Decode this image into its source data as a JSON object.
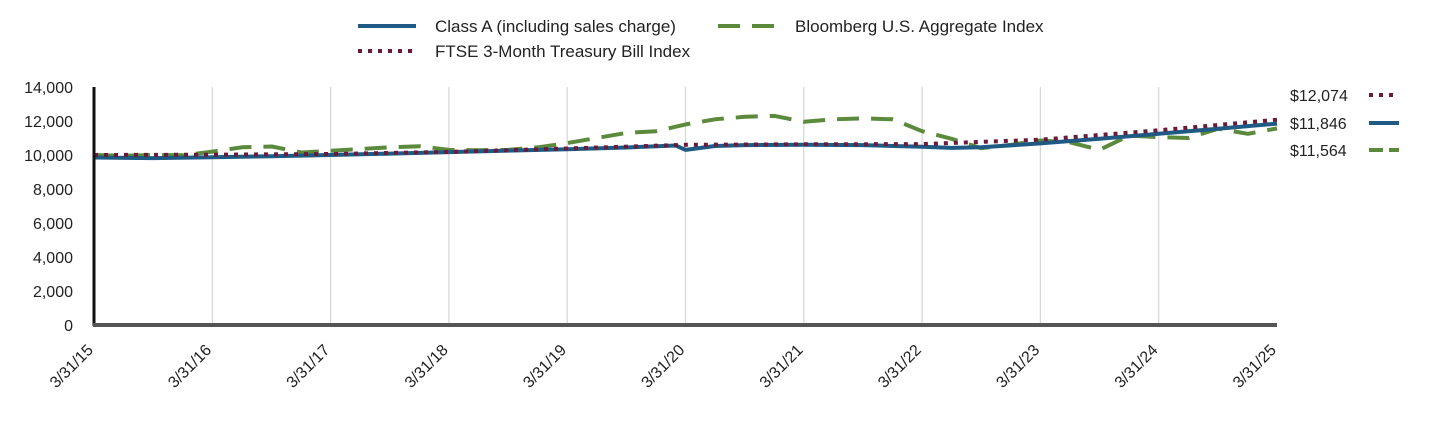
{
  "chart_data": {
    "type": "line",
    "title": "",
    "xlabel": "",
    "ylabel": "",
    "ylim": [
      0,
      14000
    ],
    "y_ticks": [
      "0",
      "2,000",
      "4,000",
      "6,000",
      "8,000",
      "10,000",
      "12,000",
      "14,000"
    ],
    "y_tick_values": [
      0,
      2000,
      4000,
      6000,
      8000,
      10000,
      12000,
      14000
    ],
    "x_ticks": [
      "3/31/15",
      "3/31/16",
      "3/31/17",
      "3/31/18",
      "3/31/19",
      "3/31/20",
      "3/31/21",
      "3/31/22",
      "3/31/23",
      "3/31/24",
      "3/31/25"
    ],
    "x_range": [
      "2015-03-31",
      "2025-03-31"
    ],
    "grid": {
      "vertical": true,
      "horizontal": false
    },
    "legend_position": "top-center",
    "series": [
      {
        "name": "Class A (including sales charge)",
        "style": "solid",
        "color": "#1f5a85",
        "end_label": "$11,846",
        "points": [
          [
            "2015-03-31",
            9850
          ],
          [
            "2015-09-30",
            9820
          ],
          [
            "2016-03-31",
            9870
          ],
          [
            "2016-09-30",
            9930
          ],
          [
            "2017-03-31",
            10000
          ],
          [
            "2017-09-30",
            10080
          ],
          [
            "2018-03-31",
            10170
          ],
          [
            "2018-09-30",
            10260
          ],
          [
            "2019-03-31",
            10340
          ],
          [
            "2019-09-30",
            10440
          ],
          [
            "2020-02-29",
            10560
          ],
          [
            "2020-03-31",
            10300
          ],
          [
            "2020-06-30",
            10530
          ],
          [
            "2020-09-30",
            10580
          ],
          [
            "2021-03-31",
            10600
          ],
          [
            "2021-09-30",
            10580
          ],
          [
            "2022-03-31",
            10480
          ],
          [
            "2022-06-30",
            10420
          ],
          [
            "2022-09-30",
            10450
          ],
          [
            "2023-03-31",
            10680
          ],
          [
            "2023-09-30",
            10950
          ],
          [
            "2024-03-31",
            11250
          ],
          [
            "2024-09-30",
            11550
          ],
          [
            "2025-03-31",
            11846
          ]
        ]
      },
      {
        "name": "Bloomberg U.S. Aggregate Index",
        "style": "dashed",
        "color": "#5b8a3c",
        "end_label": "$11,564",
        "points": [
          [
            "2015-03-31",
            10000
          ],
          [
            "2015-06-30",
            9950
          ],
          [
            "2015-09-30",
            10000
          ],
          [
            "2015-12-31",
            9980
          ],
          [
            "2016-03-31",
            10200
          ],
          [
            "2016-06-30",
            10450
          ],
          [
            "2016-09-30",
            10500
          ],
          [
            "2016-12-31",
            10150
          ],
          [
            "2017-03-31",
            10250
          ],
          [
            "2017-06-30",
            10350
          ],
          [
            "2017-09-30",
            10450
          ],
          [
            "2017-12-31",
            10520
          ],
          [
            "2018-03-31",
            10300
          ],
          [
            "2018-06-30",
            10280
          ],
          [
            "2018-09-30",
            10300
          ],
          [
            "2018-12-31",
            10450
          ],
          [
            "2019-03-31",
            10700
          ],
          [
            "2019-06-30",
            11000
          ],
          [
            "2019-09-30",
            11300
          ],
          [
            "2019-12-31",
            11400
          ],
          [
            "2020-03-31",
            11800
          ],
          [
            "2020-06-30",
            12100
          ],
          [
            "2020-09-30",
            12250
          ],
          [
            "2020-12-31",
            12300
          ],
          [
            "2021-03-31",
            11950
          ],
          [
            "2021-06-30",
            12100
          ],
          [
            "2021-09-30",
            12150
          ],
          [
            "2021-12-31",
            12100
          ],
          [
            "2022-03-31",
            11400
          ],
          [
            "2022-06-30",
            10950
          ],
          [
            "2022-09-30",
            10400
          ],
          [
            "2022-12-31",
            10600
          ],
          [
            "2023-03-31",
            10850
          ],
          [
            "2023-06-30",
            10750
          ],
          [
            "2023-09-30",
            10300
          ],
          [
            "2023-12-31",
            11150
          ],
          [
            "2024-03-31",
            11050
          ],
          [
            "2024-06-30",
            11000
          ],
          [
            "2024-09-30",
            11550
          ],
          [
            "2024-12-31",
            11250
          ],
          [
            "2025-03-31",
            11564
          ]
        ]
      },
      {
        "name": "FTSE 3-Month Treasury Bill Index",
        "style": "dotted",
        "color": "#6b1a3a",
        "end_label": "$12,074",
        "points": [
          [
            "2015-03-31",
            10000
          ],
          [
            "2016-03-31",
            10020
          ],
          [
            "2017-03-31",
            10060
          ],
          [
            "2018-03-31",
            10180
          ],
          [
            "2019-03-31",
            10380
          ],
          [
            "2020-03-31",
            10600
          ],
          [
            "2021-03-31",
            10630
          ],
          [
            "2022-03-31",
            10640
          ],
          [
            "2023-03-31",
            10900
          ],
          [
            "2024-03-31",
            11450
          ],
          [
            "2025-03-31",
            12074
          ]
        ]
      }
    ]
  }
}
